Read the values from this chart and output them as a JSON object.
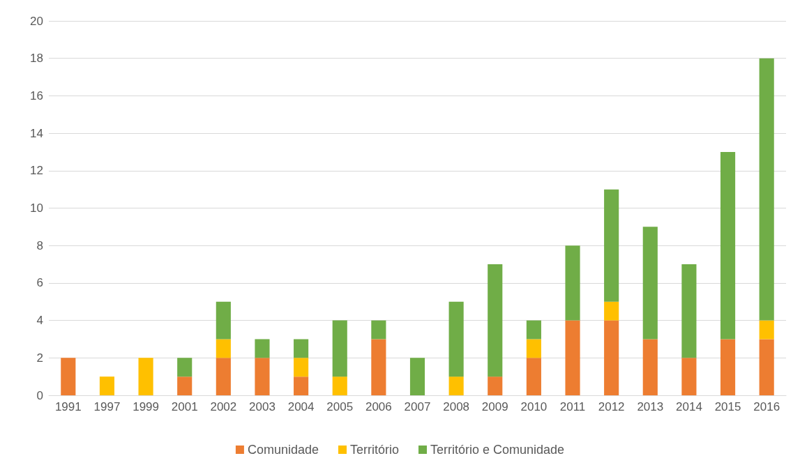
{
  "chart_data": {
    "type": "bar",
    "stacked": true,
    "categories": [
      "1991",
      "1997",
      "1999",
      "2001",
      "2002",
      "2003",
      "2004",
      "2005",
      "2006",
      "2007",
      "2008",
      "2009",
      "2010",
      "2011",
      "2012",
      "2013",
      "2014",
      "2015",
      "2016"
    ],
    "series": [
      {
        "name": "Comunidade",
        "color": "#ed7d31",
        "values": [
          2,
          0,
          0,
          1,
          2,
          2,
          1,
          0,
          3,
          0,
          0,
          1,
          2,
          4,
          4,
          3,
          2,
          3,
          3
        ]
      },
      {
        "name": "Território",
        "color": "#ffc000",
        "values": [
          0,
          1,
          2,
          0,
          1,
          0,
          1,
          1,
          0,
          0,
          1,
          0,
          1,
          0,
          1,
          0,
          0,
          0,
          1
        ]
      },
      {
        "name": "Território e Comunidade",
        "color": "#70ad47",
        "values": [
          0,
          0,
          0,
          1,
          2,
          1,
          1,
          3,
          1,
          2,
          4,
          6,
          1,
          4,
          6,
          6,
          5,
          10,
          14
        ]
      }
    ],
    "ylim": [
      0,
      20
    ],
    "yticks": [
      0,
      2,
      4,
      6,
      8,
      10,
      12,
      14,
      16,
      18,
      20
    ],
    "grid": "y",
    "legend": "bottom"
  }
}
